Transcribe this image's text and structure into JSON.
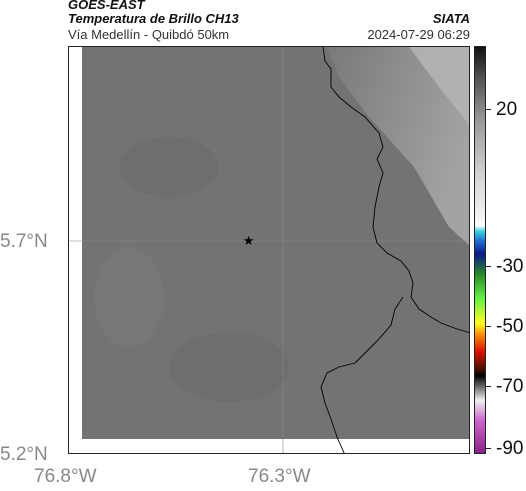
{
  "header": {
    "satellite": "GOES-EAST",
    "product": "Temperatura de Brillo CH13",
    "agency": "SIATA",
    "region": "Vía Medellín - Quibdó 50km",
    "datetime": "2024-07-29 06:29"
  },
  "axes": {
    "y_ticks": [
      "5.7°N",
      "5.2°N"
    ],
    "x_ticks": [
      "76.8°W",
      "76.3°W"
    ]
  },
  "colorbar": {
    "ticks": [
      "20",
      "-30",
      "-50",
      "-70",
      "-90"
    ]
  },
  "marker": {
    "symbol": "★",
    "lat": 5.7,
    "lon": -76.38
  },
  "colors": {
    "cloud_gray": "#737373",
    "frame": "#222222"
  }
}
